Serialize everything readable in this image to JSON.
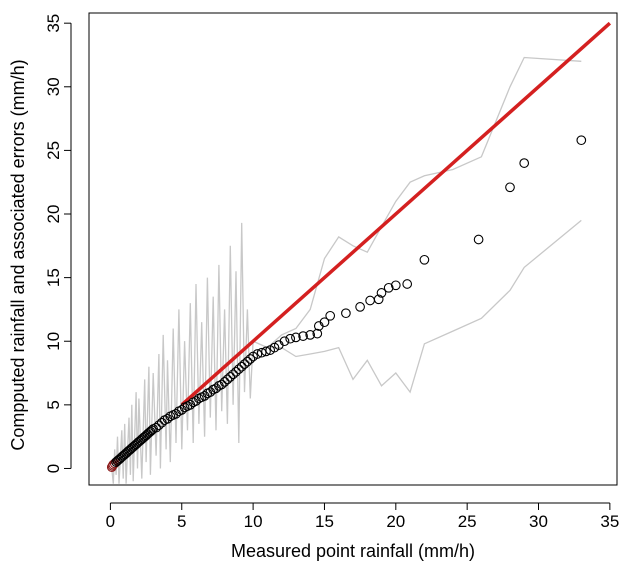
{
  "chart_data": {
    "type": "scatter",
    "title": "",
    "xlabel": "Measured point rainfall (mm/h)",
    "ylabel": "Compputed rainfall and associated errors (mm/h)",
    "xlim": [
      -1.5,
      35.5
    ],
    "ylim": [
      -1.3,
      35.8
    ],
    "xticks": [
      0,
      5,
      10,
      15,
      20,
      25,
      30,
      35
    ],
    "yticks": [
      0,
      5,
      10,
      15,
      20,
      25,
      30,
      35
    ],
    "grid": false,
    "legend": "none",
    "colors": {
      "points": "#000000",
      "points_low": "#8b1a1a",
      "identity_line": "#d42020",
      "error_lines": "#c8c8c8"
    },
    "series": [
      {
        "type": "scatter",
        "points": [
          [
            0.1,
            0.1
          ],
          [
            0.15,
            0.2
          ],
          [
            0.2,
            0.3
          ],
          [
            0.3,
            0.4
          ],
          [
            0.4,
            0.5
          ],
          [
            0.5,
            0.6
          ],
          [
            0.6,
            0.7
          ],
          [
            0.7,
            0.8
          ],
          [
            0.8,
            0.9
          ],
          [
            0.9,
            1.0
          ],
          [
            1.0,
            1.1
          ],
          [
            1.1,
            1.2
          ],
          [
            1.2,
            1.3
          ],
          [
            1.3,
            1.4
          ],
          [
            1.4,
            1.5
          ],
          [
            1.5,
            1.6
          ],
          [
            1.6,
            1.7
          ],
          [
            1.7,
            1.8
          ],
          [
            1.8,
            1.9
          ],
          [
            1.9,
            2.0
          ],
          [
            2.0,
            2.1
          ],
          [
            2.1,
            2.2
          ],
          [
            2.2,
            2.3
          ],
          [
            2.3,
            2.4
          ],
          [
            2.4,
            2.5
          ],
          [
            2.5,
            2.6
          ],
          [
            2.6,
            2.7
          ],
          [
            2.7,
            2.8
          ],
          [
            2.8,
            2.9
          ],
          [
            2.9,
            3.0
          ],
          [
            3.0,
            3.1
          ],
          [
            3.2,
            3.2
          ],
          [
            3.4,
            3.4
          ],
          [
            3.6,
            3.6
          ],
          [
            3.8,
            3.8
          ],
          [
            4.0,
            3.9
          ],
          [
            4.2,
            4.1
          ],
          [
            4.4,
            4.2
          ],
          [
            4.6,
            4.3
          ],
          [
            4.8,
            4.5
          ],
          [
            5.0,
            4.6
          ],
          [
            5.2,
            4.8
          ],
          [
            5.4,
            4.9
          ],
          [
            5.6,
            5.0
          ],
          [
            5.8,
            5.2
          ],
          [
            6.0,
            5.3
          ],
          [
            6.2,
            5.5
          ],
          [
            6.4,
            5.6
          ],
          [
            6.6,
            5.7
          ],
          [
            6.8,
            5.9
          ],
          [
            7.0,
            6.0
          ],
          [
            7.2,
            6.2
          ],
          [
            7.4,
            6.3
          ],
          [
            7.6,
            6.5
          ],
          [
            7.8,
            6.6
          ],
          [
            8.0,
            6.8
          ],
          [
            8.2,
            7.0
          ],
          [
            8.4,
            7.2
          ],
          [
            8.6,
            7.4
          ],
          [
            8.8,
            7.6
          ],
          [
            9.0,
            7.8
          ],
          [
            9.2,
            8.0
          ],
          [
            9.4,
            8.2
          ],
          [
            9.6,
            8.4
          ],
          [
            9.8,
            8.6
          ],
          [
            10.0,
            8.8
          ],
          [
            10.3,
            9.0
          ],
          [
            10.6,
            9.1
          ],
          [
            10.9,
            9.2
          ],
          [
            11.2,
            9.3
          ],
          [
            11.5,
            9.5
          ],
          [
            11.8,
            9.7
          ],
          [
            12.2,
            10.0
          ],
          [
            12.6,
            10.2
          ],
          [
            13.0,
            10.3
          ],
          [
            13.5,
            10.4
          ],
          [
            14.0,
            10.5
          ],
          [
            14.5,
            10.6
          ],
          [
            14.6,
            11.2
          ],
          [
            15.0,
            11.5
          ],
          [
            15.4,
            12.0
          ],
          [
            16.5,
            12.2
          ],
          [
            17.5,
            12.7
          ],
          [
            18.2,
            13.2
          ],
          [
            18.8,
            13.3
          ],
          [
            19.0,
            13.8
          ],
          [
            19.5,
            14.2
          ],
          [
            20.0,
            14.4
          ],
          [
            20.8,
            14.5
          ],
          [
            22.0,
            16.4
          ],
          [
            25.8,
            18.0
          ],
          [
            28.0,
            22.1
          ],
          [
            29.0,
            24.0
          ],
          [
            33.0,
            25.8
          ]
        ]
      },
      {
        "type": "line",
        "name_hidden": "identity",
        "points": [
          [
            5.0,
            5.0
          ],
          [
            35.0,
            35.0
          ]
        ]
      },
      {
        "type": "line",
        "name_hidden": "upper_error",
        "points": [
          [
            10,
            10
          ],
          [
            11,
            9.5
          ],
          [
            12,
            10.5
          ],
          [
            13,
            11
          ],
          [
            14,
            12.5
          ],
          [
            15,
            16.5
          ],
          [
            16,
            18.2
          ],
          [
            17,
            17.5
          ],
          [
            18,
            17
          ],
          [
            19,
            19
          ],
          [
            20,
            21
          ],
          [
            21,
            22.5
          ],
          [
            22,
            23
          ],
          [
            24,
            23.5
          ],
          [
            26,
            24.5
          ],
          [
            28,
            30
          ],
          [
            29,
            32.3
          ],
          [
            33,
            32
          ]
        ]
      },
      {
        "type": "line",
        "name_hidden": "lower_error",
        "points": [
          [
            10,
            9
          ],
          [
            11,
            9.5
          ],
          [
            12,
            9.5
          ],
          [
            13,
            8.8
          ],
          [
            14,
            9.0
          ],
          [
            15,
            9.2
          ],
          [
            16,
            9.5
          ],
          [
            17,
            7.0
          ],
          [
            18,
            8.5
          ],
          [
            19,
            6.5
          ],
          [
            20,
            7.5
          ],
          [
            21,
            6.0
          ],
          [
            22,
            9.8
          ],
          [
            24,
            10.8
          ],
          [
            26,
            11.8
          ],
          [
            28,
            14.0
          ],
          [
            29,
            15.8
          ],
          [
            33,
            19.5
          ]
        ]
      },
      {
        "type": "line",
        "name_hidden": "noisy_error_band",
        "points": [
          [
            0.1,
            0.0
          ],
          [
            0.2,
            -1.2
          ],
          [
            0.3,
            1.5
          ],
          [
            0.4,
            -0.5
          ],
          [
            0.5,
            2.5
          ],
          [
            0.6,
            -1.2
          ],
          [
            0.8,
            3.0
          ],
          [
            0.9,
            -0.8
          ],
          [
            1.0,
            3.5
          ],
          [
            1.1,
            -1.2
          ],
          [
            1.3,
            4.0
          ],
          [
            1.4,
            -0.5
          ],
          [
            1.5,
            5.0
          ],
          [
            1.6,
            -1.0
          ],
          [
            1.8,
            6.0
          ],
          [
            1.9,
            0.0
          ],
          [
            2.0,
            5.5
          ],
          [
            2.2,
            -0.8
          ],
          [
            2.4,
            7.0
          ],
          [
            2.5,
            0.5
          ],
          [
            2.7,
            8.0
          ],
          [
            2.8,
            -0.5
          ],
          [
            3.0,
            7.5
          ],
          [
            3.2,
            1.0
          ],
          [
            3.4,
            9.0
          ],
          [
            3.5,
            0.0
          ],
          [
            3.7,
            10.5
          ],
          [
            3.9,
            1.5
          ],
          [
            4.0,
            8.5
          ],
          [
            4.2,
            0.5
          ],
          [
            4.4,
            11.0
          ],
          [
            4.6,
            2.0
          ],
          [
            4.8,
            12.5
          ],
          [
            5.0,
            1.5
          ],
          [
            5.2,
            10.0
          ],
          [
            5.4,
            3.0
          ],
          [
            5.6,
            13.0
          ],
          [
            5.8,
            2.0
          ],
          [
            6.0,
            14.5
          ],
          [
            6.2,
            3.5
          ],
          [
            6.4,
            11.5
          ],
          [
            6.6,
            2.5
          ],
          [
            6.8,
            15.0
          ],
          [
            7.0,
            4.0
          ],
          [
            7.2,
            13.5
          ],
          [
            7.4,
            3.0
          ],
          [
            7.6,
            16.0
          ],
          [
            7.8,
            4.5
          ],
          [
            8.0,
            12.5
          ],
          [
            8.2,
            3.5
          ],
          [
            8.4,
            17.5
          ],
          [
            8.6,
            5.0
          ],
          [
            8.8,
            15.5
          ],
          [
            9.0,
            2.0
          ],
          [
            9.2,
            19.3
          ],
          [
            9.4,
            6.0
          ],
          [
            9.6,
            12.5
          ],
          [
            9.8,
            5.5
          ],
          [
            10.0,
            10.0
          ]
        ]
      }
    ]
  }
}
